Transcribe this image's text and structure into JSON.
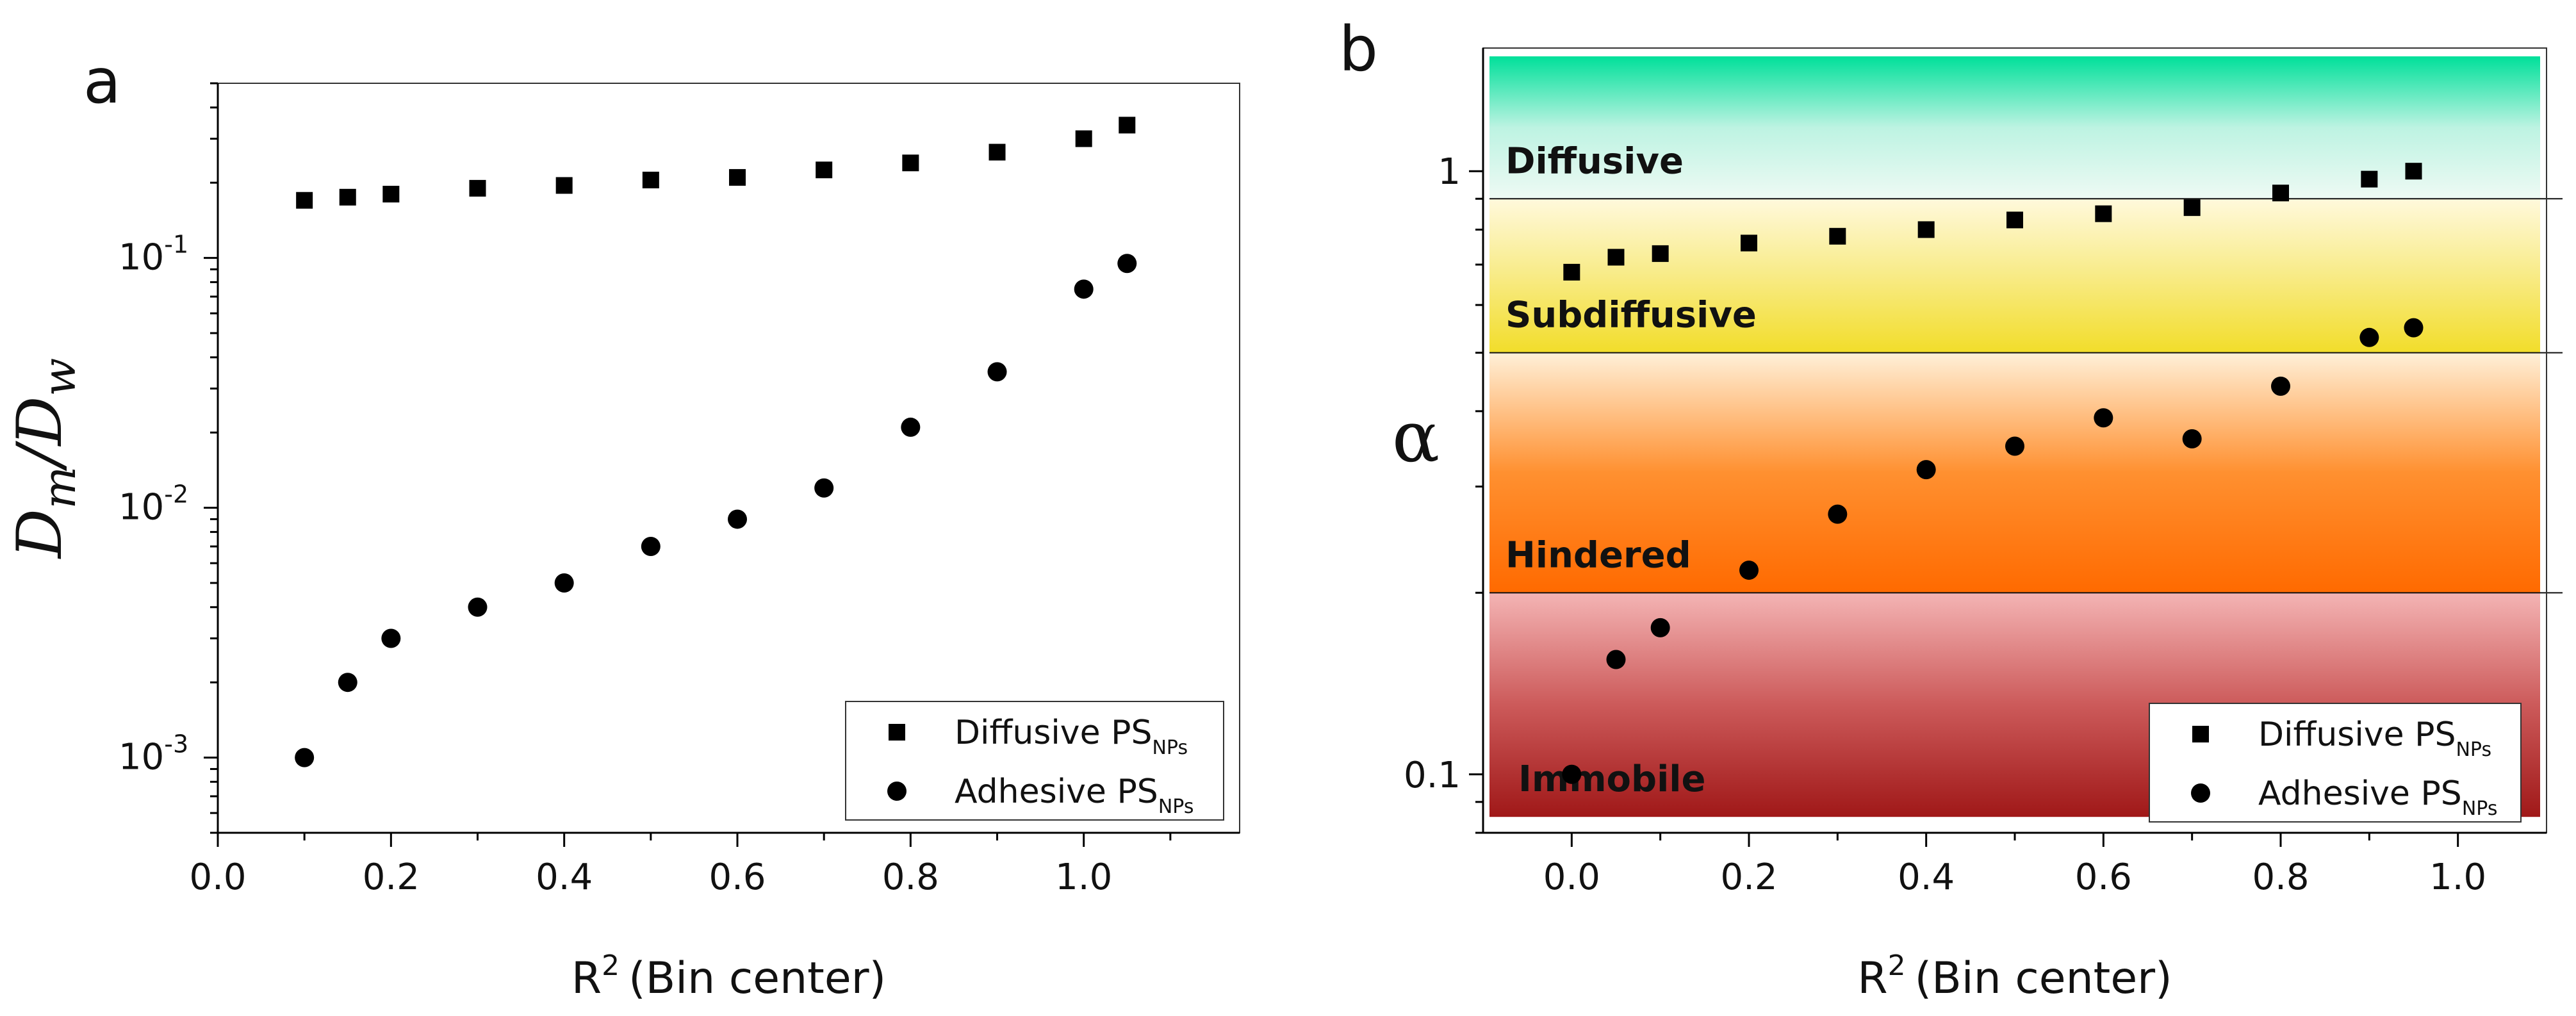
{
  "chart_data": [
    {
      "panel": "a",
      "type": "scatter",
      "xlabel": "R",
      "xlabel_sup": "2",
      "xlabel_suffix": "(Bin center)",
      "ylabel": "D",
      "ylabel_sub1": "m",
      "ylabel_slash": "/D",
      "ylabel_sub2": "w",
      "xlim": [
        0.0,
        1.18
      ],
      "ylim": [
        0.0005,
        0.5
      ],
      "yscale": "log",
      "xticks": [
        "0.0",
        "0.2",
        "0.4",
        "0.6",
        "0.8",
        "1.0"
      ],
      "yticks": [
        {
          "base": "10",
          "exp": "-3"
        },
        {
          "base": "10",
          "exp": "-2"
        },
        {
          "base": "10",
          "exp": "-1"
        }
      ],
      "legend_position": "bottom-right",
      "series": [
        {
          "name": "Diffusive PS",
          "name_sub": "NPs",
          "marker": "square",
          "points": [
            [
              0.1,
              0.17
            ],
            [
              0.15,
              0.175
            ],
            [
              0.2,
              0.18
            ],
            [
              0.3,
              0.19
            ],
            [
              0.4,
              0.195
            ],
            [
              0.5,
              0.205
            ],
            [
              0.6,
              0.21
            ],
            [
              0.7,
              0.225
            ],
            [
              0.8,
              0.24
            ],
            [
              0.9,
              0.265
            ],
            [
              1.0,
              0.3
            ],
            [
              1.05,
              0.34
            ]
          ]
        },
        {
          "name": "Adhesive PS",
          "name_sub": "NPs",
          "marker": "circle",
          "points": [
            [
              0.1,
              0.001
            ],
            [
              0.15,
              0.002
            ],
            [
              0.2,
              0.003
            ],
            [
              0.3,
              0.004
            ],
            [
              0.4,
              0.005
            ],
            [
              0.5,
              0.007
            ],
            [
              0.6,
              0.009
            ],
            [
              0.7,
              0.012
            ],
            [
              0.8,
              0.021
            ],
            [
              0.9,
              0.035
            ],
            [
              1.0,
              0.075
            ],
            [
              1.05,
              0.095
            ]
          ]
        }
      ]
    },
    {
      "panel": "b",
      "type": "scatter",
      "xlabel": "R",
      "xlabel_sup": "2",
      "xlabel_suffix": "(Bin center)",
      "ylabel": "α",
      "xlim": [
        -0.1,
        1.1
      ],
      "ylim": [
        0.08,
        1.6
      ],
      "yscale": "log",
      "xticks": [
        "0.0",
        "0.2",
        "0.4",
        "0.6",
        "0.8",
        "1.0"
      ],
      "yticks": [
        {
          "label": "0.1",
          "value": 0.1
        },
        {
          "label": "1",
          "value": 1.0
        }
      ],
      "regions": [
        {
          "label": "Diffusive",
          "from": 0.9,
          "to": 1.55,
          "colors": [
            "#00e09a",
            "#bdf3e2",
            "#eefaf4"
          ]
        },
        {
          "label": "Subdiffusive",
          "from": 0.5,
          "to": 0.9,
          "colors": [
            "#fff9dc",
            "#f8eb86",
            "#f2dd2a"
          ]
        },
        {
          "label": "Hindered",
          "from": 0.2,
          "to": 0.5,
          "colors": [
            "#fff0d8",
            "#ff9030",
            "#ff6a00"
          ]
        },
        {
          "label": "Immobile",
          "from": 0.085,
          "to": 0.2,
          "colors": [
            "#f4b4b4",
            "#cc5a5a",
            "#a01818"
          ]
        }
      ],
      "legend_position": "bottom-right",
      "series": [
        {
          "name": "Diffusive PS",
          "name_sub": "NPs",
          "marker": "square",
          "points": [
            [
              0.0,
              0.68
            ],
            [
              0.05,
              0.72
            ],
            [
              0.1,
              0.73
            ],
            [
              0.2,
              0.76
            ],
            [
              0.3,
              0.78
            ],
            [
              0.4,
              0.8
            ],
            [
              0.5,
              0.83
            ],
            [
              0.6,
              0.85
            ],
            [
              0.7,
              0.87
            ],
            [
              0.8,
              0.92
            ],
            [
              0.9,
              0.97
            ],
            [
              0.95,
              1.0
            ]
          ]
        },
        {
          "name": "Adhesive PS",
          "name_sub": "NPs",
          "marker": "circle",
          "points": [
            [
              0.0,
              0.1
            ],
            [
              0.05,
              0.155
            ],
            [
              0.1,
              0.175
            ],
            [
              0.2,
              0.218
            ],
            [
              0.3,
              0.27
            ],
            [
              0.4,
              0.32
            ],
            [
              0.5,
              0.35
            ],
            [
              0.6,
              0.39
            ],
            [
              0.7,
              0.36
            ],
            [
              0.8,
              0.44
            ],
            [
              0.9,
              0.53
            ],
            [
              0.95,
              0.55
            ]
          ]
        }
      ]
    }
  ]
}
